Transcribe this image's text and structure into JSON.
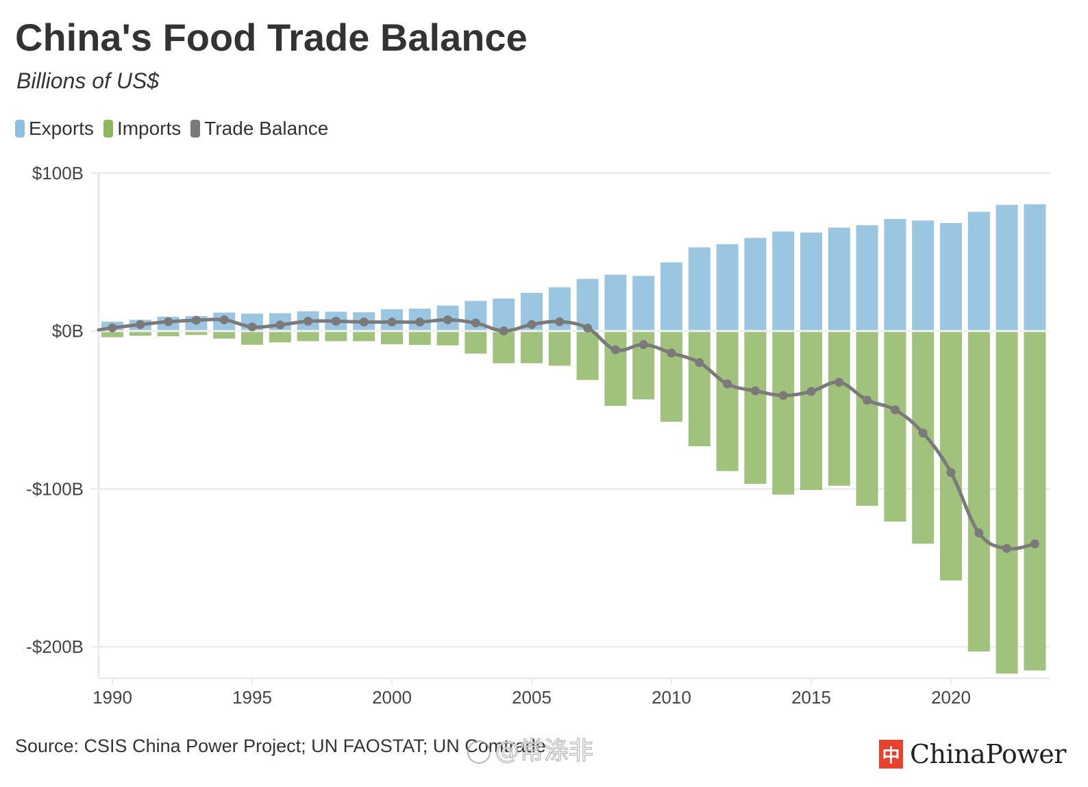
{
  "header": {
    "title": "China's Food Trade Balance",
    "subtitle": "Billions of US$"
  },
  "legend": [
    {
      "label": "Exports",
      "color": "#8dbfe0"
    },
    {
      "label": "Imports",
      "color": "#8db85d"
    },
    {
      "label": "Trade Balance",
      "color": "#7a7a7a"
    }
  ],
  "footer": {
    "source": "Source: CSIS China Power Project; UN FAOSTAT; UN Comtrade",
    "watermark": "@常涤非",
    "brand": "ChinaPower",
    "brand_logo_glyph": "中"
  },
  "colors": {
    "exports_bar": "#9bc6e2",
    "imports_bar": "#a0c27c",
    "balance_line": "#7a7a7a",
    "gridline": "#ebebeb",
    "brand_red": "#e8412c"
  },
  "chart_data": {
    "type": "bar",
    "title": "China's Food Trade Balance",
    "subtitle": "Billions of US$",
    "xlabel": "",
    "ylabel": "Billions of US$",
    "legend_position": "top-left",
    "grid": true,
    "ylim": [
      -220,
      100
    ],
    "yticks": [
      100,
      0,
      -100,
      -200
    ],
    "ytick_labels": [
      "$100B",
      "$0B",
      "-$100B",
      "-$200B"
    ],
    "xticks": [
      1990,
      1995,
      2000,
      2005,
      2010,
      2015,
      2020
    ],
    "xtick_labels": [
      "1990",
      "1995",
      "2000",
      "2005",
      "2010",
      "2015",
      "2020"
    ],
    "x": [
      1990,
      1991,
      1992,
      1993,
      1994,
      1995,
      1996,
      1997,
      1998,
      1999,
      2000,
      2001,
      2002,
      2003,
      2004,
      2005,
      2006,
      2007,
      2008,
      2009,
      2010,
      2011,
      2012,
      2013,
      2014,
      2015,
      2016,
      2017,
      2018,
      2019,
      2020,
      2021,
      2022,
      2023
    ],
    "series": [
      {
        "name": "Exports",
        "type": "bar",
        "values": [
          5.9,
          7.1,
          9.1,
          9.4,
          11.7,
          11.0,
          11.3,
          12.5,
          12.2,
          11.9,
          13.8,
          14.2,
          16.1,
          19.1,
          20.6,
          24.2,
          27.7,
          33.0,
          35.7,
          34.9,
          43.5,
          53.0,
          55.0,
          59.0,
          63.0,
          62.4,
          65.5,
          67.0,
          71.0,
          70.0,
          68.4,
          75.5,
          79.9,
          80.3
        ]
      },
      {
        "name": "Imports",
        "type": "bar",
        "values": [
          -3.9,
          -3.0,
          -3.3,
          -2.5,
          -4.8,
          -8.7,
          -7.2,
          -6.4,
          -6.4,
          -6.4,
          -8.4,
          -8.8,
          -9.1,
          -14.3,
          -20.4,
          -20.4,
          -22.0,
          -31.0,
          -47.4,
          -43.3,
          -57.5,
          -73.0,
          -88.7,
          -96.8,
          -103.6,
          -100.7,
          -98.0,
          -110.7,
          -120.7,
          -134.7,
          -158.0,
          -203.0,
          -217.0,
          -215.0
        ]
      },
      {
        "name": "Trade Balance",
        "type": "line",
        "values": [
          2.0,
          4.1,
          5.9,
          6.8,
          7.1,
          2.6,
          3.9,
          6.2,
          6.2,
          5.7,
          5.7,
          5.7,
          7.1,
          5.1,
          0.1,
          4.1,
          5.9,
          1.9,
          -11.9,
          -8.6,
          -13.9,
          -20.0,
          -33.5,
          -37.9,
          -40.8,
          -38.3,
          -32.5,
          -43.8,
          -49.9,
          -64.6,
          -89.6,
          -127.9,
          -137.7,
          -134.8
        ]
      }
    ]
  }
}
